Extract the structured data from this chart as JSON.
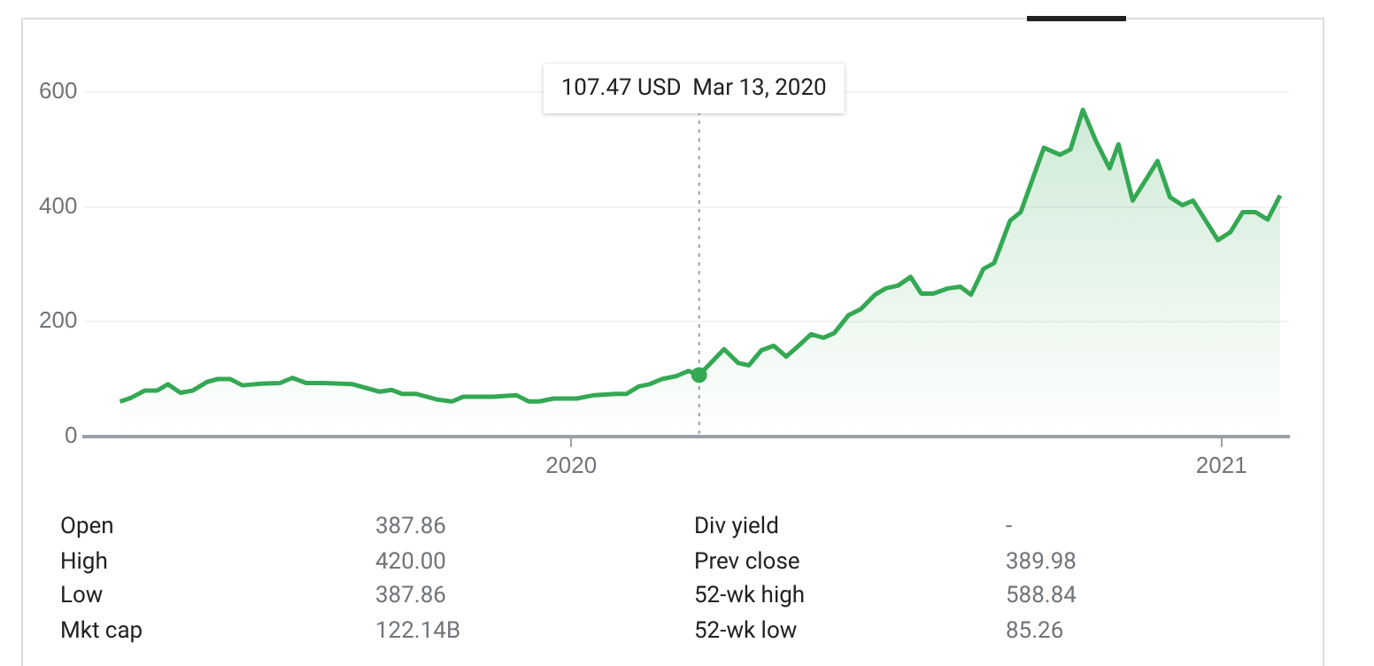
{
  "chart_data": {
    "type": "area",
    "x": [
      "2019-04-22",
      "2019-04-28",
      "2019-05-06",
      "2019-05-13",
      "2019-05-19",
      "2019-05-26",
      "2019-06-02",
      "2019-06-10",
      "2019-06-16",
      "2019-06-23",
      "2019-06-30",
      "2019-07-10",
      "2019-07-21",
      "2019-07-28",
      "2019-08-05",
      "2019-08-15",
      "2019-08-31",
      "2019-09-15",
      "2019-09-22",
      "2019-09-28",
      "2019-10-06",
      "2019-10-18",
      "2019-10-26",
      "2019-11-01",
      "2019-11-18",
      "2019-12-01",
      "2019-12-08",
      "2019-12-14",
      "2019-12-22",
      "2020-01-04",
      "2020-01-14",
      "2020-01-26",
      "2020-02-01",
      "2020-02-08",
      "2020-02-14",
      "2020-02-21",
      "2020-02-29",
      "2020-03-07",
      "2020-03-13",
      "2020-03-27",
      "2020-04-04",
      "2020-04-10",
      "2020-04-17",
      "2020-04-24",
      "2020-05-01",
      "2020-05-08",
      "2020-05-15",
      "2020-05-22",
      "2020-05-28",
      "2020-06-05",
      "2020-06-12",
      "2020-06-20",
      "2020-06-26",
      "2020-07-03",
      "2020-07-10",
      "2020-07-16",
      "2020-07-23",
      "2020-07-31",
      "2020-08-07",
      "2020-08-13",
      "2020-08-20",
      "2020-08-26",
      "2020-09-04",
      "2020-09-10",
      "2020-09-23",
      "2020-10-02",
      "2020-10-08",
      "2020-10-15",
      "2020-10-22",
      "2020-10-30",
      "2020-11-04",
      "2020-11-12",
      "2020-11-20",
      "2020-11-26",
      "2020-12-03",
      "2020-12-10",
      "2020-12-16",
      "2020-12-30",
      "2021-01-06",
      "2021-01-13",
      "2021-01-20",
      "2021-01-27",
      "2021-02-03"
    ],
    "series": [
      {
        "color": "#34a853",
        "values": [
          61,
          67,
          80,
          80,
          91,
          76,
          80,
          95,
          100,
          100,
          89,
          92,
          93,
          102,
          93,
          93,
          91,
          78,
          81,
          74,
          74,
          64,
          61,
          69,
          69,
          72,
          61,
          61,
          66,
          66,
          72,
          74,
          74,
          87,
          91,
          100,
          105,
          114,
          107,
          152,
          128,
          124,
          150,
          158,
          139,
          158,
          178,
          172,
          180,
          211,
          222,
          247,
          258,
          263,
          278,
          249,
          249,
          258,
          261,
          247,
          292,
          302,
          376,
          391,
          503,
          491,
          500,
          569,
          517,
          467,
          509,
          411,
          450,
          480,
          417,
          403,
          411,
          342,
          356,
          391,
          391,
          378,
          420
        ]
      }
    ],
    "xlim": [
      "2019-04-02",
      "2021-02-08"
    ],
    "xticks": [
      "2020",
      "2021"
    ],
    "ylim": [
      0,
      600
    ],
    "yticks": [
      0,
      200,
      400,
      600
    ],
    "grid": "y",
    "legend": false,
    "marker": "none",
    "line_style": "solid",
    "ref_lines": [
      {
        "axis": "x",
        "value": "2020-03-13",
        "line_style": "dotted",
        "color": "#9aa0a6"
      }
    ],
    "annotations": [
      "107.47 USD  Mar 13, 2020",
      "Open",
      "387.86",
      "High",
      "420.00",
      "Low",
      "387.86",
      "Mkt cap",
      "122.14B",
      "Div yield",
      "-",
      "Prev close",
      "389.98",
      "52-wk high",
      "588.84",
      "52-wk low",
      "85.26"
    ]
  }
}
